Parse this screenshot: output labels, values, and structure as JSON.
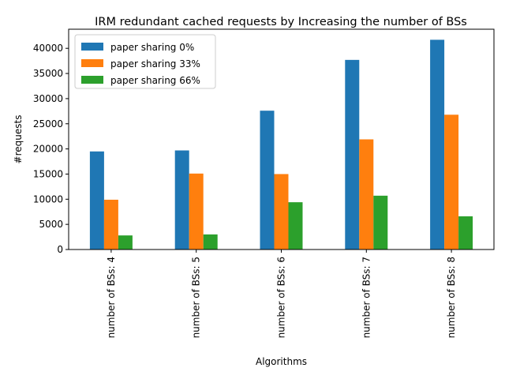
{
  "chart_data": {
    "type": "bar",
    "title": "IRM redundant cached requests by Increasing the number of BSs",
    "xlabel": "Algorithms",
    "ylabel": "#requests",
    "categories": [
      "number of BSs: 4",
      "number of BSs: 5",
      "number of BSs: 6",
      "number of BSs: 7",
      "number of BSs: 8"
    ],
    "series": [
      {
        "name": "paper sharing 0%",
        "color": "#1f77b4",
        "values": [
          19500,
          19700,
          27600,
          37700,
          41700
        ]
      },
      {
        "name": "paper sharing 33%",
        "color": "#ff7f0e",
        "values": [
          9900,
          15100,
          15000,
          21900,
          26800
        ]
      },
      {
        "name": "paper sharing 66%",
        "color": "#2ca02c",
        "values": [
          2800,
          3000,
          9400,
          10700,
          6600
        ]
      }
    ],
    "ylim": [
      0,
      43800
    ],
    "yticks": [
      0,
      5000,
      10000,
      15000,
      20000,
      25000,
      30000,
      35000,
      40000
    ],
    "legend_position": "top-left",
    "grid": false
  }
}
